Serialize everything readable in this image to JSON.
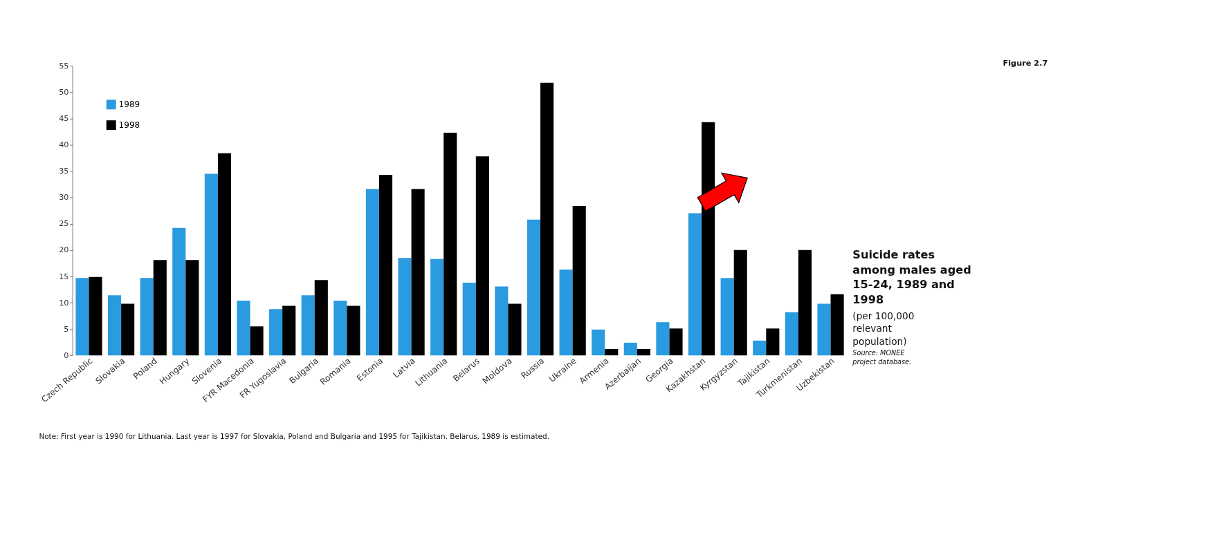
{
  "chart_data": {
    "type": "bar",
    "title": "Suicide rates among males aged 15-24, 1989 and 1998",
    "subtitle": "(per 100,000 relevant population)",
    "annotations": [
      "Figure 2.7",
      "Source: MONEE project database.",
      "Note: First year is 1990 for Lithuania. Last year is 1997 for Slovakia, Poland and Bulgaria and 1995 for Tajikistan. Belarus, 1989 is estimated."
    ],
    "categories": [
      "Czech Republic",
      "Slovakia",
      "Poland",
      "Hungary",
      "Slovenia",
      "FYR Macedonia",
      "FR Yugoslavia",
      "Bulgaria",
      "Romania",
      "Estonia",
      "Latvia",
      "Lithuania",
      "Belarus",
      "Moldova",
      "Russia",
      "Ukraine",
      "Armenia",
      "Azerbaijan",
      "Georgia",
      "Kazakhstan",
      "Kyrgyzstan",
      "Tajikistan",
      "Turkmenistan",
      "Uzbekistan"
    ],
    "series": [
      {
        "name": "1989",
        "color": "#2a9be0",
        "values": [
          14.7,
          11.4,
          14.7,
          24.2,
          34.5,
          10.4,
          8.8,
          11.4,
          10.4,
          31.6,
          18.5,
          18.3,
          13.8,
          13.1,
          25.8,
          16.3,
          4.9,
          2.4,
          6.3,
          27.0,
          14.7,
          2.8,
          8.2,
          9.8
        ]
      },
      {
        "name": "1998",
        "color": "#000000",
        "values": [
          14.9,
          9.8,
          18.1,
          18.1,
          38.4,
          5.5,
          9.4,
          14.3,
          9.4,
          34.3,
          31.6,
          42.3,
          37.8,
          9.8,
          51.8,
          28.4,
          1.2,
          1.2,
          5.1,
          44.3,
          20.0,
          5.1,
          20.0,
          11.6
        ]
      }
    ],
    "ylim": [
      0,
      55
    ],
    "yticks": [
      0,
      5,
      10,
      15,
      20,
      25,
      30,
      35,
      40,
      45,
      50,
      55
    ],
    "grid": false,
    "legend": "top left"
  }
}
